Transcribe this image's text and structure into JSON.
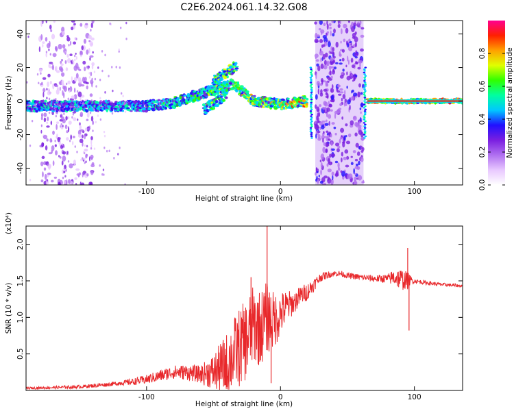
{
  "figure_title": "C2E6.2024.061.14.32.G08",
  "colors": {
    "snr_line": "#e8282b",
    "spectrogram_base": "#7a1fe0",
    "frame": "#000000"
  },
  "chart_data": [
    {
      "type": "heatmap",
      "title": "C2E6.2024.061.14.32.G08",
      "xlabel": "Height of straight line (km)",
      "ylabel": "Frequency (Hz)",
      "xlim": [
        -190,
        136
      ],
      "ylim": [
        -50,
        48
      ],
      "xticks": [
        -100,
        0,
        100
      ],
      "yticks": [
        -40,
        -20,
        0,
        20,
        40
      ],
      "grid": false,
      "description_series": [
        {
          "name": "main signal trace",
          "x": [
            -190,
            -150,
            -100,
            -80,
            -60,
            -45,
            -35,
            -20,
            0,
            20
          ],
          "y": [
            -3,
            -3,
            -3,
            -1,
            4,
            8,
            10,
            0,
            -2,
            0
          ]
        },
        {
          "name": "upper branch",
          "x": [
            -50,
            -40,
            -33
          ],
          "y": [
            12,
            17,
            21
          ]
        },
        {
          "name": "lower branch",
          "x": [
            -57,
            -47,
            -40
          ],
          "y": [
            -5,
            0,
            4
          ]
        },
        {
          "name": "stable trace",
          "x": [
            65,
            136
          ],
          "y": [
            0,
            0
          ]
        }
      ],
      "noise_bands_km": [
        [
          -180,
          -160
        ],
        [
          -160,
          -140
        ],
        [
          26,
          62
        ]
      ],
      "colorbar": {
        "label": "Normalized spectral amplitude",
        "range": [
          0,
          1
        ],
        "ticks": [
          0.0,
          0.2,
          0.4,
          0.6,
          0.8
        ],
        "tick_labels": [
          "0.0",
          "0.2",
          "0.4",
          "0.6",
          "0.8"
        ],
        "colormap": [
          "#ffffff",
          "#e8c8ff",
          "#b070f0",
          "#7a1fe0",
          "#2010ff",
          "#00c8ff",
          "#00ffa0",
          "#30ff00",
          "#e0ff00",
          "#ffa000",
          "#ff2000",
          "#ff0090"
        ]
      }
    },
    {
      "type": "line",
      "xlabel": "Height of straight line (km)",
      "ylabel": "SNR (10 * v/v)",
      "y_multiplier_label": "(x10⁴)",
      "xlim": [
        -190,
        136
      ],
      "ylim": [
        0,
        2.25
      ],
      "xticks": [
        -100,
        0,
        100
      ],
      "yticks": [
        0.5,
        1.0,
        1.5,
        2.0
      ],
      "ytick_labels": [
        "0.5",
        "1.0",
        "1.5",
        "2.0"
      ],
      "grid": false,
      "series": [
        {
          "name": "SNR",
          "color": "#e8282b",
          "x": [
            -190,
            -170,
            -150,
            -130,
            -110,
            -100,
            -90,
            -80,
            -70,
            -60,
            -50,
            -40,
            -35,
            -30,
            -25,
            -20,
            -15,
            -10,
            -5,
            0,
            5,
            10,
            15,
            20,
            25,
            30,
            35,
            40,
            45,
            50,
            60,
            70,
            80,
            85,
            90,
            95,
            100,
            110,
            120,
            136
          ],
          "y": [
            0.03,
            0.04,
            0.05,
            0.08,
            0.12,
            0.15,
            0.2,
            0.25,
            0.25,
            0.22,
            0.25,
            0.35,
            0.5,
            0.6,
            0.7,
            0.9,
            0.85,
            1.0,
            0.95,
            1.05,
            1.15,
            1.2,
            1.3,
            1.35,
            1.45,
            1.55,
            1.58,
            1.6,
            1.6,
            1.57,
            1.55,
            1.53,
            1.53,
            1.55,
            1.52,
            1.5,
            1.5,
            1.47,
            1.45,
            1.43
          ]
        }
      ],
      "noise_amplitude": {
        "x": [
          -190,
          -120,
          -90,
          -60,
          -50,
          -40,
          -30,
          -20,
          -10,
          0,
          10,
          20,
          30,
          40,
          60,
          80,
          85,
          90,
          95,
          100,
          136
        ],
        "amp": [
          0.015,
          0.03,
          0.08,
          0.12,
          0.25,
          0.45,
          0.55,
          0.55,
          0.5,
          0.3,
          0.15,
          0.12,
          0.06,
          0.04,
          0.04,
          0.06,
          0.12,
          0.15,
          0.12,
          0.03,
          0.02
        ]
      },
      "spikes": [
        {
          "x": -10,
          "y": 2.25
        },
        {
          "x": -7,
          "y": 0.1
        },
        {
          "x": -22,
          "y": 1.55
        },
        {
          "x": 95,
          "y": 1.95
        },
        {
          "x": 96,
          "y": 0.82
        }
      ]
    }
  ]
}
